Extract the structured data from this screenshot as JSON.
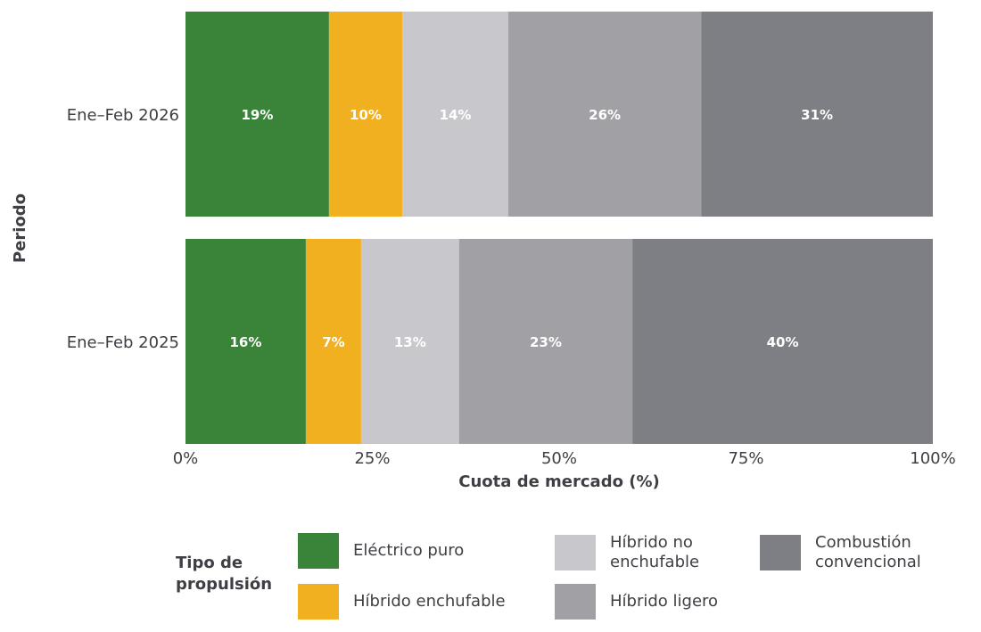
{
  "chart_data": {
    "type": "bar",
    "orientation": "horizontal",
    "stacked": true,
    "title": "",
    "xlabel": "Cuota de mercado (%)",
    "ylabel": "Periodo",
    "xlim": [
      0,
      100
    ],
    "x_ticks": [
      "0%",
      "25%",
      "50%",
      "75%",
      "100%"
    ],
    "categories": [
      "Ene–Feb 2026",
      "Ene–Feb 2025"
    ],
    "series": [
      {
        "name": "Eléctrico puro",
        "color": "#3a843a",
        "values": [
          19.2,
          16.1
        ],
        "labels": [
          "19%",
          "16%"
        ]
      },
      {
        "name": "Híbrido enchufable",
        "color": "#f0b020",
        "values": [
          9.8,
          7.4
        ],
        "labels": [
          "10%",
          "7%"
        ]
      },
      {
        "name": "Híbrido no enchufable",
        "color": "#c8c8cc",
        "values": [
          14.2,
          13.1
        ],
        "labels": [
          "14%",
          "13%"
        ]
      },
      {
        "name": "Híbrido ligero",
        "color": "#a0a0a5",
        "values": [
          25.8,
          23.2
        ],
        "labels": [
          "26%",
          "23%"
        ]
      },
      {
        "name": "Combustión convencional",
        "color": "#7d7f84",
        "values": [
          31.0,
          40.2
        ],
        "labels": [
          "31%",
          "40%"
        ]
      }
    ],
    "legend": {
      "title": "Tipo de propulsión",
      "placement": "bottom"
    }
  }
}
